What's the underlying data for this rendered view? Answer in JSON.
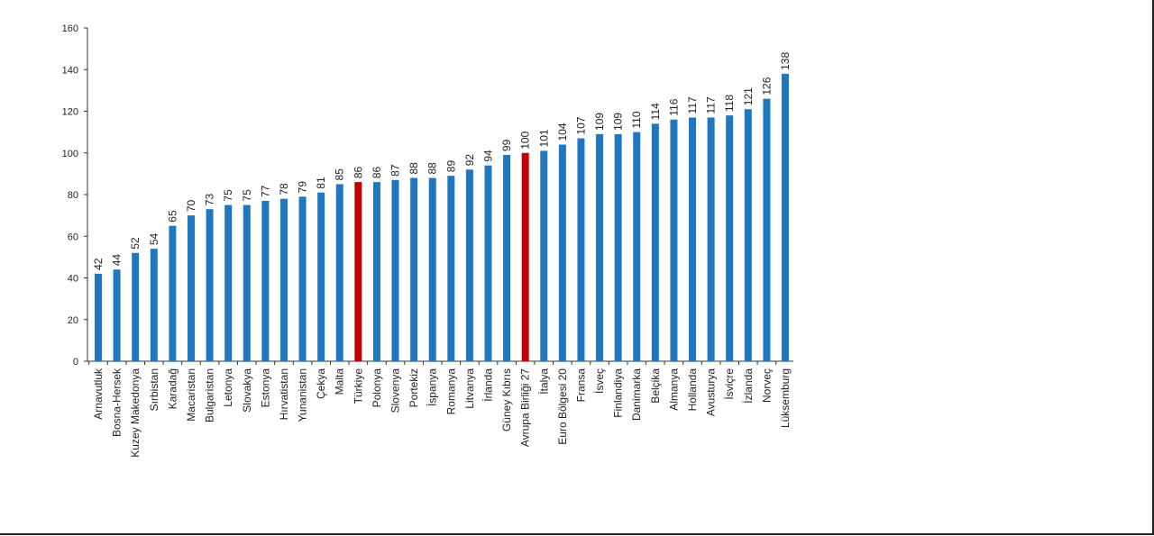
{
  "chart_data": {
    "type": "bar",
    "title": "",
    "xlabel": "",
    "ylabel": "",
    "ylim": [
      0,
      160
    ],
    "yticks": [
      0,
      20,
      40,
      60,
      80,
      100,
      120,
      140,
      160
    ],
    "grid": false,
    "default_color": "#1f77c0",
    "highlight_color": "#c00000",
    "categories": [
      "Arnavutluk",
      "Bosna-Hersek",
      "Kuzey Makedonya",
      "Sırbistan",
      "Karadağ",
      "Macaristan",
      "Bulgaristan",
      "Letonya",
      "Slovakya",
      "Estonya",
      "Hırvatistan",
      "Yunanistan",
      "Çekya",
      "Malta",
      "Türkiye",
      "Polonya",
      "Slovenya",
      "Portekiz",
      "İspanya",
      "Romanya",
      "Litvanya",
      "İrlanda",
      "Güney Kıbrıs",
      "Avrupa Birliği 27",
      "İtalya",
      "Euro Bölgesi 20",
      "Fransa",
      "İsveç",
      "Finlandiya",
      "Danimarka",
      "Belçika",
      "Almanya",
      "Hollanda",
      "Avusturya",
      "İsviçre",
      "İzlanda",
      "Norveç",
      "Lüksemburg"
    ],
    "values": [
      42,
      44,
      52,
      54,
      65,
      70,
      73,
      75,
      75,
      77,
      78,
      79,
      81,
      85,
      86,
      86,
      87,
      88,
      88,
      89,
      92,
      94,
      99,
      100,
      101,
      104,
      107,
      109,
      109,
      110,
      114,
      116,
      117,
      117,
      118,
      121,
      126,
      138
    ],
    "highlighted": [
      "Türkiye",
      "Avrupa Birliği 27"
    ]
  }
}
